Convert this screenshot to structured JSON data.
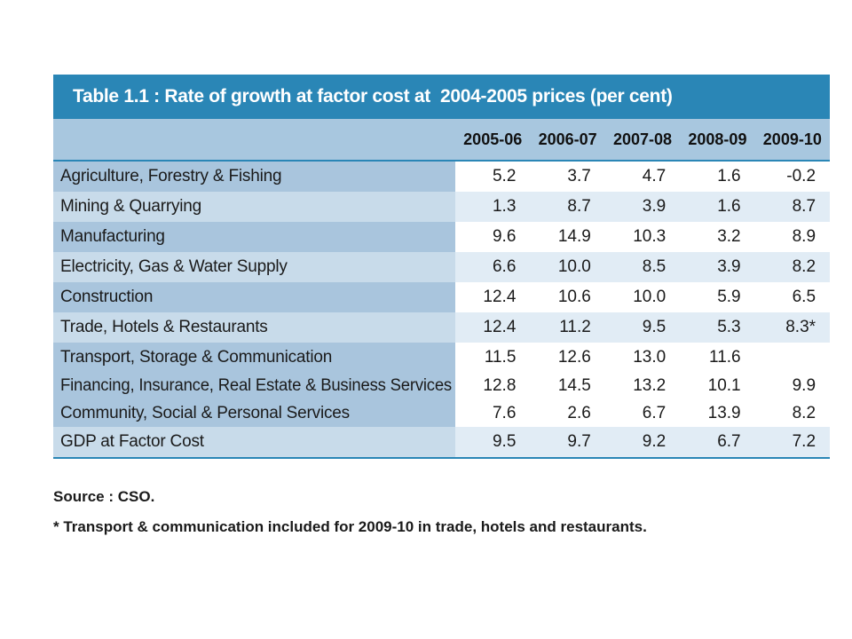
{
  "table": {
    "title": "Table 1.1 : Rate of growth at factor cost at  2004-2005 prices (per cent)",
    "years": [
      "2005-06",
      "2006-07",
      "2007-08",
      "2008-09",
      "2009-10"
    ],
    "rows": [
      {
        "label": "Agriculture, Forestry & Fishing",
        "values": [
          "5.2",
          "3.7",
          "4.7",
          "1.6",
          "-0.2"
        ]
      },
      {
        "label": "Mining & Quarrying",
        "values": [
          "1.3",
          "8.7",
          "3.9",
          "1.6",
          "8.7"
        ]
      },
      {
        "label": "Manufacturing",
        "values": [
          "9.6",
          "14.9",
          "10.3",
          "3.2",
          "8.9"
        ]
      },
      {
        "label": "Electricity, Gas & Water Supply",
        "values": [
          "6.6",
          "10.0",
          "8.5",
          "3.9",
          "8.2"
        ]
      },
      {
        "label": "Construction",
        "values": [
          "12.4",
          "10.6",
          "10.0",
          "5.9",
          "6.5"
        ]
      },
      {
        "label": "Trade, Hotels & Restaurants",
        "values": [
          "12.4",
          "11.2",
          "9.5",
          "5.3",
          "8.3*"
        ]
      },
      {
        "label": "Transport, Storage & Communication",
        "values": [
          "11.5",
          "12.6",
          "13.0",
          "11.6",
          ""
        ]
      },
      {
        "label": "Financing, Insurance, Real Estate & Business Services",
        "values": [
          "12.8",
          "14.5",
          "13.2",
          "10.1",
          "9.9"
        ]
      },
      {
        "label": "Community, Social & Personal Services",
        "values": [
          "7.6",
          "2.6",
          "6.7",
          "13.9",
          "8.2"
        ]
      },
      {
        "label": "GDP at Factor Cost",
        "values": [
          "9.5",
          "9.7",
          "9.2",
          "6.7",
          "7.2"
        ]
      }
    ]
  },
  "footnotes": {
    "source": "Source : CSO.",
    "note": "* Transport & communication included for 2009-10 in trade, hotels and restaurants."
  }
}
